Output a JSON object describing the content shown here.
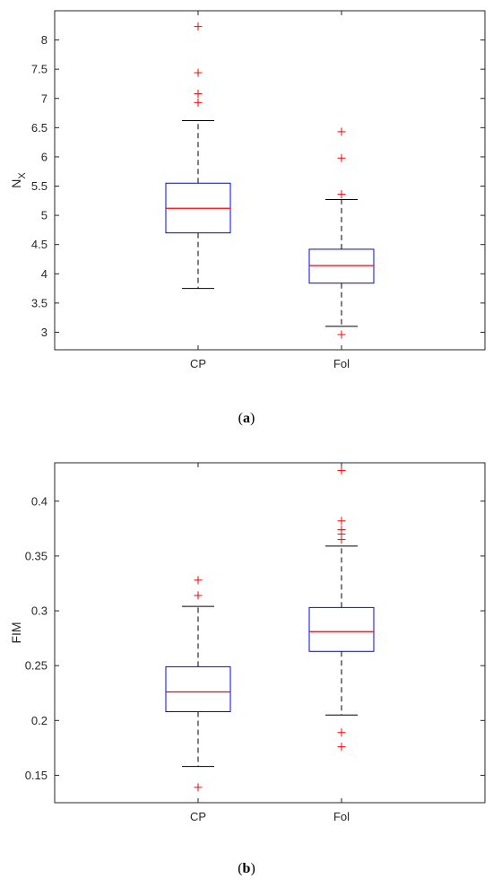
{
  "chart_data": [
    {
      "type": "boxplot",
      "caption_letter": "a",
      "ylabel": "N",
      "ylabel_subscript": "X",
      "ylim": [
        2.7,
        8.5
      ],
      "yticks": [
        3,
        3.5,
        4,
        4.5,
        5,
        5.5,
        6,
        6.5,
        7,
        7.5,
        8
      ],
      "categories": [
        "CP",
        "Fol"
      ],
      "boxes": [
        {
          "category": "CP",
          "q1": 4.7,
          "median": 5.12,
          "q3": 5.55,
          "whisker_low": 3.75,
          "whisker_high": 6.62,
          "outliers": [
            6.93,
            7.08,
            7.44,
            8.23
          ]
        },
        {
          "category": "Fol",
          "q1": 3.84,
          "median": 4.14,
          "q3": 4.42,
          "whisker_low": 3.1,
          "whisker_high": 5.27,
          "outliers": [
            2.96,
            5.36,
            5.98,
            6.43
          ]
        }
      ],
      "colors": {
        "box": "#0000ff",
        "median": "#ff0000",
        "whisker": "#000000",
        "outlier": "#ff0000"
      }
    },
    {
      "type": "boxplot",
      "caption_letter": "b",
      "ylabel": "FIM",
      "ylabel_subscript": "",
      "ylim": [
        0.125,
        0.435
      ],
      "yticks": [
        0.15,
        0.2,
        0.25,
        0.3,
        0.35,
        0.4
      ],
      "categories": [
        "CP",
        "Fol"
      ],
      "boxes": [
        {
          "category": "CP",
          "q1": 0.208,
          "median": 0.226,
          "q3": 0.249,
          "whisker_low": 0.158,
          "whisker_high": 0.304,
          "outliers": [
            0.139,
            0.314,
            0.328
          ]
        },
        {
          "category": "Fol",
          "q1": 0.263,
          "median": 0.281,
          "q3": 0.303,
          "whisker_low": 0.205,
          "whisker_high": 0.359,
          "outliers": [
            0.176,
            0.189,
            0.365,
            0.37,
            0.374,
            0.382,
            0.428
          ]
        }
      ],
      "colors": {
        "box": "#0000ff",
        "median": "#ff0000",
        "whisker": "#000000",
        "outlier": "#ff0000"
      }
    }
  ]
}
